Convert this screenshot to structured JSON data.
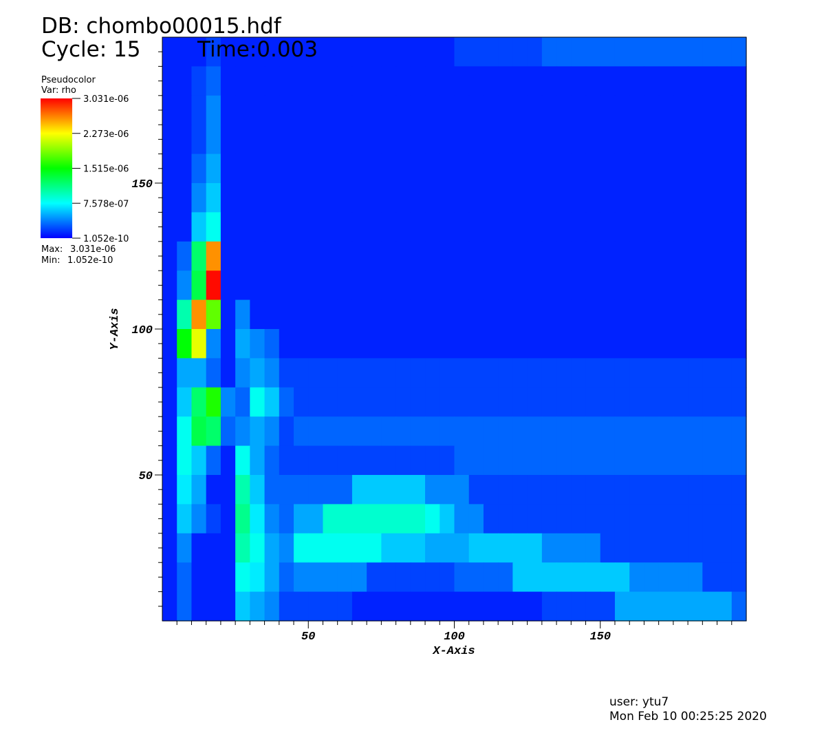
{
  "chart_data": {
    "type": "heatmap",
    "title": "DB: chombo00015.hdf",
    "cycle": "Cycle: 15",
    "time": "Time:0.003",
    "plot_name": "Pseudocolor",
    "variable": "Var: rho",
    "max_text": "Max:",
    "max": {
      "value": 3.031e-06,
      "label": "3.031e-06"
    },
    "min_text": "Min:",
    "min": {
      "value": 1.052e-10,
      "label": "1.052e-10"
    },
    "xlabel": "X-Axis",
    "ylabel": "Y-Axis",
    "user": "user: ytu7",
    "date": "Mon Feb 10 00:25:25 2020",
    "xlim": [
      0,
      200
    ],
    "ylim": [
      0,
      200
    ],
    "xticks": [
      50,
      100,
      150
    ],
    "yticks": [
      50,
      100,
      150
    ],
    "xminorticks": [
      5,
      10,
      15,
      20,
      25,
      30,
      35,
      40,
      45,
      55,
      60,
      65,
      70,
      75,
      80,
      85,
      90,
      95,
      105,
      110,
      115,
      120,
      125,
      130,
      135,
      140,
      145,
      155,
      160,
      165,
      170,
      175,
      180,
      185,
      190,
      195
    ],
    "yminorticks": [
      5,
      10,
      15,
      20,
      25,
      30,
      35,
      40,
      45,
      55,
      60,
      65,
      70,
      75,
      80,
      85,
      90,
      95,
      105,
      110,
      115,
      120,
      125,
      130,
      135,
      140,
      145,
      155,
      160,
      165,
      170,
      175,
      180,
      185,
      190,
      195
    ],
    "zlim": [
      1.052e-10,
      3.031e-06
    ],
    "zticks": [
      {
        "value": 3.031e-06,
        "label": "3.031e-06"
      },
      {
        "value": 2.273e-06,
        "label": "2.273e-06"
      },
      {
        "value": 1.515e-06,
        "label": "1.515e-06"
      },
      {
        "value": 7.578e-07,
        "label": "7.578e-07"
      },
      {
        "value": 1.052e-10,
        "label": "1.052e-10"
      }
    ],
    "z": [
      [
        1e-07,
        1e-07,
        1e-07,
        2e-07,
        1e-07,
        1e-07,
        1e-07,
        1e-07,
        1e-07,
        1e-07,
        1e-07,
        1e-07,
        1e-07,
        1e-07,
        1e-07,
        1e-07,
        1e-07,
        1e-07,
        1e-07,
        1e-07,
        2e-07,
        2e-07,
        2e-07,
        2e-07,
        2e-07,
        2e-07,
        3e-07,
        3e-07,
        3e-07,
        3e-07,
        3e-07,
        3e-07,
        3e-07,
        3e-07,
        3e-07,
        3e-07,
        3e-07,
        3e-07,
        3e-07,
        3e-07
      ],
      [
        1e-07,
        1e-07,
        2e-07,
        3e-07,
        1e-07,
        1e-07,
        1e-07,
        1e-07,
        1e-07,
        1e-07,
        1e-07,
        1e-07,
        1e-07,
        1e-07,
        1e-07,
        1e-07,
        1e-07,
        1e-07,
        1e-07,
        1e-07,
        1e-07,
        1e-07,
        1e-07,
        1e-07,
        1e-07,
        1e-07,
        1e-07,
        1e-07,
        1e-07,
        1e-07,
        1e-07,
        1e-07,
        1e-07,
        1e-07,
        1e-07,
        1e-07,
        1e-07,
        1e-07,
        1e-07,
        1e-07
      ],
      [
        1e-07,
        1e-07,
        2e-07,
        4e-07,
        1e-07,
        1e-07,
        1e-07,
        1e-07,
        1e-07,
        1e-07,
        1e-07,
        1e-07,
        1e-07,
        1e-07,
        1e-07,
        1e-07,
        1e-07,
        1e-07,
        1e-07,
        1e-07,
        1e-07,
        1e-07,
        1e-07,
        1e-07,
        1e-07,
        1e-07,
        1e-07,
        1e-07,
        1e-07,
        1e-07,
        1e-07,
        1e-07,
        1e-07,
        1e-07,
        1e-07,
        1e-07,
        1e-07,
        1e-07,
        1e-07,
        1e-07
      ],
      [
        1e-07,
        1e-07,
        2e-07,
        4e-07,
        1e-07,
        1e-07,
        1e-07,
        1e-07,
        1e-07,
        1e-07,
        1e-07,
        1e-07,
        1e-07,
        1e-07,
        1e-07,
        1e-07,
        1e-07,
        1e-07,
        1e-07,
        1e-07,
        1e-07,
        1e-07,
        1e-07,
        1e-07,
        1e-07,
        1e-07,
        1e-07,
        1e-07,
        1e-07,
        1e-07,
        1e-07,
        1e-07,
        1e-07,
        1e-07,
        1e-07,
        1e-07,
        1e-07,
        1e-07,
        1e-07,
        1e-07
      ],
      [
        1e-07,
        1e-07,
        3e-07,
        5e-07,
        1e-07,
        1e-07,
        1e-07,
        1e-07,
        1e-07,
        1e-07,
        1e-07,
        1e-07,
        1e-07,
        1e-07,
        1e-07,
        1e-07,
        1e-07,
        1e-07,
        1e-07,
        1e-07,
        1e-07,
        1e-07,
        1e-07,
        1e-07,
        1e-07,
        1e-07,
        1e-07,
        1e-07,
        1e-07,
        1e-07,
        1e-07,
        1e-07,
        1e-07,
        1e-07,
        1e-07,
        1e-07,
        1e-07,
        1e-07,
        1e-07,
        1e-07
      ],
      [
        1e-07,
        1e-07,
        4e-07,
        6e-07,
        1e-07,
        1e-07,
        1e-07,
        1e-07,
        1e-07,
        1e-07,
        1e-07,
        1e-07,
        1e-07,
        1e-07,
        1e-07,
        1e-07,
        1e-07,
        1e-07,
        1e-07,
        1e-07,
        1e-07,
        1e-07,
        1e-07,
        1e-07,
        1e-07,
        1e-07,
        1e-07,
        1e-07,
        1e-07,
        1e-07,
        1e-07,
        1e-07,
        1e-07,
        1e-07,
        1e-07,
        1e-07,
        1e-07,
        1e-07,
        1e-07,
        1e-07
      ],
      [
        1e-07,
        1e-07,
        6e-07,
        8e-07,
        1e-07,
        1e-07,
        1e-07,
        1e-07,
        1e-07,
        1e-07,
        1e-07,
        1e-07,
        1e-07,
        1e-07,
        1e-07,
        1e-07,
        1e-07,
        1e-07,
        1e-07,
        1e-07,
        1e-07,
        1e-07,
        1e-07,
        1e-07,
        1e-07,
        1e-07,
        1e-07,
        1e-07,
        1e-07,
        1e-07,
        1e-07,
        1e-07,
        1e-07,
        1e-07,
        1e-07,
        1e-07,
        1e-07,
        1e-07,
        1e-07,
        1e-07
      ],
      [
        1e-07,
        3e-07,
        1.2e-06,
        2.6e-06,
        1e-07,
        1e-07,
        1e-07,
        1e-07,
        1e-07,
        1e-07,
        1e-07,
        1e-07,
        1e-07,
        1e-07,
        1e-07,
        1e-07,
        1e-07,
        1e-07,
        1e-07,
        1e-07,
        1e-07,
        1e-07,
        1e-07,
        1e-07,
        1e-07,
        1e-07,
        1e-07,
        1e-07,
        1e-07,
        1e-07,
        1e-07,
        1e-07,
        1e-07,
        1e-07,
        1e-07,
        1e-07,
        1e-07,
        1e-07,
        1e-07,
        1e-07
      ],
      [
        1e-07,
        4e-07,
        1.3e-06,
        3e-06,
        1e-07,
        1e-07,
        1e-07,
        1e-07,
        1e-07,
        1e-07,
        1e-07,
        1e-07,
        1e-07,
        1e-07,
        1e-07,
        1e-07,
        1e-07,
        1e-07,
        1e-07,
        1e-07,
        1e-07,
        1e-07,
        1e-07,
        1e-07,
        1e-07,
        1e-07,
        1e-07,
        1e-07,
        1e-07,
        1e-07,
        1e-07,
        1e-07,
        1e-07,
        1e-07,
        1e-07,
        1e-07,
        1e-07,
        1e-07,
        1e-07,
        1e-07
      ],
      [
        1e-07,
        1e-06,
        2.6e-06,
        1.8e-06,
        1e-07,
        4e-07,
        1e-07,
        1e-07,
        1e-07,
        1e-07,
        1e-07,
        1e-07,
        1e-07,
        1e-07,
        1e-07,
        1e-07,
        1e-07,
        1e-07,
        1e-07,
        1e-07,
        1e-07,
        1e-07,
        1e-07,
        1e-07,
        1e-07,
        1e-07,
        1e-07,
        1e-07,
        1e-07,
        1e-07,
        1e-07,
        1e-07,
        1e-07,
        1e-07,
        1e-07,
        1e-07,
        1e-07,
        1e-07,
        1e-07,
        1e-07
      ],
      [
        1e-07,
        1.5e-06,
        2.2e-06,
        4e-07,
        1e-07,
        5e-07,
        4e-07,
        3e-07,
        1e-07,
        1e-07,
        1e-07,
        1e-07,
        1e-07,
        1e-07,
        1e-07,
        1e-07,
        1e-07,
        1e-07,
        1e-07,
        1e-07,
        1e-07,
        1e-07,
        1e-07,
        1e-07,
        1e-07,
        1e-07,
        1e-07,
        1e-07,
        1e-07,
        1e-07,
        1e-07,
        1e-07,
        1e-07,
        1e-07,
        1e-07,
        1e-07,
        1e-07,
        1e-07,
        1e-07,
        1e-07
      ],
      [
        1e-07,
        5e-07,
        5e-07,
        3e-07,
        1e-07,
        4e-07,
        5e-07,
        4e-07,
        2e-07,
        2e-07,
        2e-07,
        2e-07,
        2e-07,
        2e-07,
        2e-07,
        2e-07,
        2e-07,
        2e-07,
        2e-07,
        2e-07,
        2e-07,
        2e-07,
        2e-07,
        2e-07,
        2e-07,
        2e-07,
        2e-07,
        2e-07,
        2e-07,
        2e-07,
        2e-07,
        2e-07,
        2e-07,
        2e-07,
        2e-07,
        2e-07,
        2e-07,
        2e-07,
        2e-07,
        2e-07
      ],
      [
        1e-07,
        6e-07,
        1.2e-06,
        1.6e-06,
        4e-07,
        3e-07,
        8e-07,
        6e-07,
        3e-07,
        2e-07,
        2e-07,
        2e-07,
        2e-07,
        2e-07,
        2e-07,
        2e-07,
        2e-07,
        2e-07,
        2e-07,
        2e-07,
        2e-07,
        2e-07,
        2e-07,
        2e-07,
        2e-07,
        2e-07,
        2e-07,
        2e-07,
        2e-07,
        2e-07,
        2e-07,
        2e-07,
        2e-07,
        2e-07,
        2e-07,
        2e-07,
        2e-07,
        2e-07,
        2e-07,
        2e-07
      ],
      [
        1e-07,
        8e-07,
        1.3e-06,
        1.2e-06,
        3e-07,
        4e-07,
        5e-07,
        4e-07,
        2e-07,
        3e-07,
        3e-07,
        3e-07,
        3e-07,
        3e-07,
        3e-07,
        3e-07,
        3e-07,
        3e-07,
        3e-07,
        3e-07,
        3e-07,
        3e-07,
        3e-07,
        3e-07,
        3e-07,
        3e-07,
        3e-07,
        3e-07,
        3e-07,
        3e-07,
        3e-07,
        3e-07,
        3e-07,
        3e-07,
        3e-07,
        3e-07,
        3e-07,
        3e-07,
        3e-07,
        3e-07
      ],
      [
        1e-07,
        8e-07,
        6e-07,
        3e-07,
        1e-07,
        8e-07,
        5e-07,
        3e-07,
        2e-07,
        2e-07,
        2e-07,
        2e-07,
        2e-07,
        2e-07,
        2e-07,
        2e-07,
        2e-07,
        2e-07,
        2e-07,
        2e-07,
        3e-07,
        3e-07,
        3e-07,
        3e-07,
        3e-07,
        3e-07,
        3e-07,
        3e-07,
        3e-07,
        3e-07,
        3e-07,
        3e-07,
        3e-07,
        3e-07,
        3e-07,
        3e-07,
        3e-07,
        3e-07,
        3e-07,
        3e-07
      ],
      [
        1e-07,
        7e-07,
        5e-07,
        1e-07,
        1e-07,
        1e-06,
        6e-07,
        3e-07,
        3e-07,
        3e-07,
        3e-07,
        3e-07,
        3e-07,
        6e-07,
        6e-07,
        6e-07,
        6e-07,
        6e-07,
        4e-07,
        4e-07,
        4e-07,
        2e-07,
        2e-07,
        2e-07,
        2e-07,
        2e-07,
        2e-07,
        2e-07,
        2e-07,
        2e-07,
        2e-07,
        2e-07,
        2e-07,
        2e-07,
        2e-07,
        2e-07,
        2e-07,
        2e-07,
        2e-07,
        2e-07
      ],
      [
        1e-07,
        6e-07,
        4e-07,
        2e-07,
        1e-07,
        1.1e-06,
        7e-07,
        4e-07,
        3e-07,
        5e-07,
        5e-07,
        9e-07,
        9e-07,
        9e-07,
        9e-07,
        9e-07,
        9e-07,
        9e-07,
        8e-07,
        6e-07,
        4e-07,
        4e-07,
        2e-07,
        2e-07,
        2e-07,
        2e-07,
        2e-07,
        2e-07,
        2e-07,
        2e-07,
        2e-07,
        2e-07,
        2e-07,
        2e-07,
        2e-07,
        2e-07,
        2e-07,
        2e-07,
        2e-07,
        2e-07
      ],
      [
        1e-07,
        4e-07,
        1e-07,
        1e-07,
        1e-07,
        1e-06,
        8e-07,
        5e-07,
        4e-07,
        8e-07,
        8e-07,
        8e-07,
        8e-07,
        8e-07,
        8e-07,
        6e-07,
        6e-07,
        6e-07,
        5e-07,
        5e-07,
        5e-07,
        6e-07,
        6e-07,
        6e-07,
        6e-07,
        6e-07,
        4e-07,
        4e-07,
        4e-07,
        4e-07,
        2e-07,
        2e-07,
        2e-07,
        2e-07,
        2e-07,
        2e-07,
        2e-07,
        2e-07,
        2e-07,
        2e-07
      ],
      [
        1e-07,
        3e-07,
        1e-07,
        1e-07,
        1e-07,
        8e-07,
        7e-07,
        5e-07,
        3e-07,
        4e-07,
        4e-07,
        4e-07,
        4e-07,
        4e-07,
        2e-07,
        2e-07,
        2e-07,
        2e-07,
        2e-07,
        2e-07,
        3e-07,
        3e-07,
        3e-07,
        3e-07,
        6e-07,
        6e-07,
        6e-07,
        6e-07,
        6e-07,
        6e-07,
        6e-07,
        6e-07,
        4e-07,
        4e-07,
        4e-07,
        4e-07,
        4e-07,
        2e-07,
        2e-07,
        2e-07
      ],
      [
        1e-07,
        3e-07,
        1e-07,
        1e-07,
        1e-07,
        6e-07,
        5e-07,
        4e-07,
        2e-07,
        2e-07,
        2e-07,
        2e-07,
        2e-07,
        1e-07,
        1e-07,
        1e-07,
        1e-07,
        1e-07,
        1e-07,
        1e-07,
        1e-07,
        1e-07,
        1e-07,
        1e-07,
        1e-07,
        1e-07,
        2e-07,
        2e-07,
        2e-07,
        2e-07,
        2e-07,
        5e-07,
        5e-07,
        5e-07,
        5e-07,
        5e-07,
        5e-07,
        5e-07,
        5e-07,
        3e-07
      ]
    ]
  }
}
